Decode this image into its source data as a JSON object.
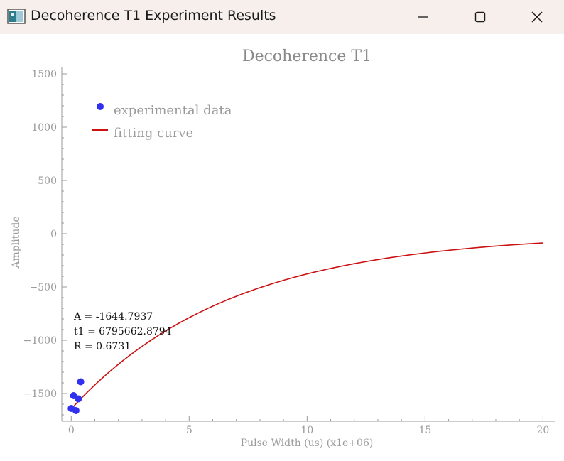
{
  "window": {
    "title": "Decoherence T1 Experiment Results",
    "icon": "chart-app-icon",
    "controls": {
      "minimize": "minimize-icon",
      "maximize": "maximize-icon",
      "close": "close-icon"
    }
  },
  "chart_data": {
    "type": "scatter",
    "title": "Decoherence T1",
    "xlabel": "Pulse Width (us) (x1e+06)",
    "ylabel": "Amplitude",
    "xlim": [
      -0.4,
      20.5
    ],
    "ylim": [
      -1760,
      1560
    ],
    "x_ticks": [
      0,
      5,
      10,
      15,
      20
    ],
    "y_ticks": [
      -1500,
      -1000,
      -500,
      0,
      500,
      1000,
      1500
    ],
    "x_tick_labels": [
      "0",
      "5",
      "10",
      "15",
      "20"
    ],
    "y_tick_labels": [
      "−1500",
      "−1000",
      "−500",
      "0",
      "500",
      "1000",
      "1500"
    ],
    "grid": false,
    "legend_position": "top-left",
    "series": [
      {
        "name": "experimental data",
        "kind": "scatter",
        "color": "#3030ee",
        "x": [
          0.0,
          0.1,
          0.2,
          0.3,
          0.4
        ],
        "y": [
          -1640,
          -1520,
          -1660,
          -1550,
          -1390
        ]
      },
      {
        "name": "fitting curve",
        "kind": "line",
        "color": "#cc1111",
        "fit": {
          "A": -1644.7937,
          "t1": 6.7956628794
        },
        "x_range": [
          0.0,
          20.0
        ]
      }
    ],
    "annotation": [
      "A = -1644.7937",
      "t1 = 6795662.8794",
      "R = 0.6731"
    ]
  }
}
